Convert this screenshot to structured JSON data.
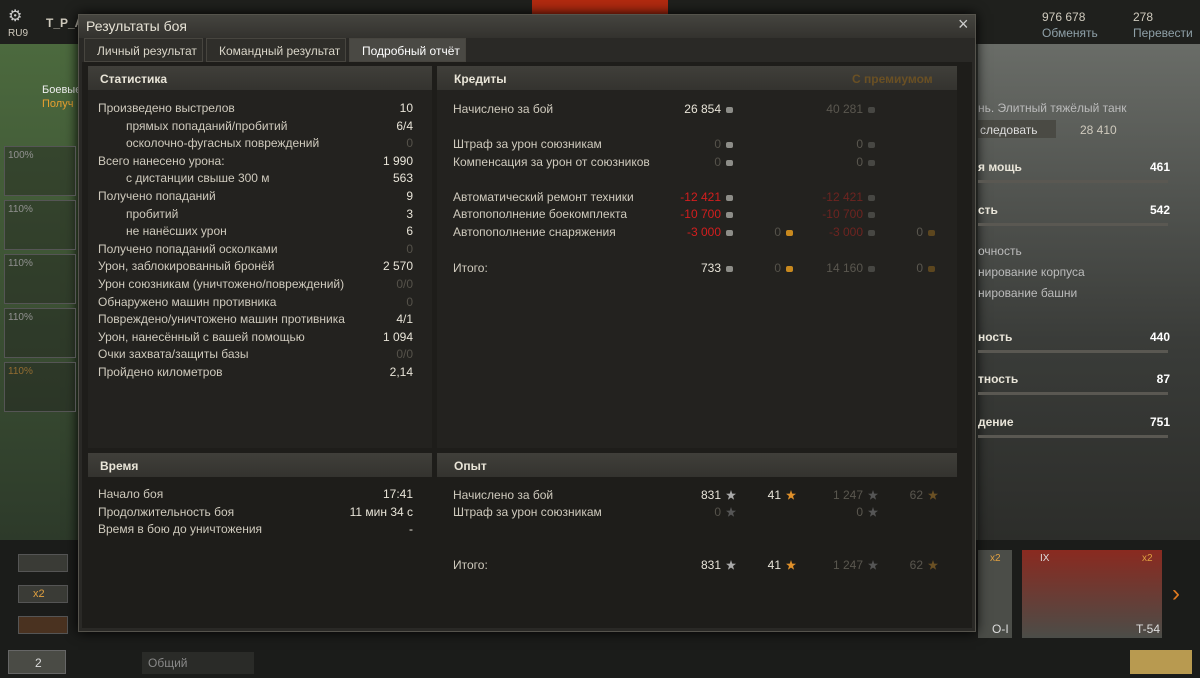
{
  "top_bar": {
    "server": "RU9",
    "player": "T_P_A",
    "credits": "976 678",
    "exchange": "Обменять",
    "gold": "278",
    "transfer": "Перевести"
  },
  "left_panel": {
    "battles": "Боевые",
    "received": "Получ",
    "percents": [
      "100%",
      "110%",
      "110%",
      "110%",
      "110%"
    ]
  },
  "right_panel": {
    "tank_desc": "нь. Элитный тяжёлый танк",
    "research": "следовать",
    "xp": "28 410",
    "params": [
      {
        "label": "я мощь",
        "value": "461"
      },
      {
        "label": "сть",
        "value": "542"
      },
      {
        "label": "ность",
        "value": "440"
      },
      {
        "label": "тность",
        "value": "87"
      },
      {
        "label": "дение",
        "value": "751"
      }
    ],
    "modules": [
      "очность",
      "нирование корпуса",
      "нирование башни"
    ]
  },
  "carousel": {
    "bonus": "x2",
    "tanks": [
      {
        "name": "O-I",
        "bonus": "x2"
      },
      {
        "name": "T-54",
        "tier": "IX",
        "bonus": "x2"
      }
    ]
  },
  "bottom_bar": {
    "platoon": "2",
    "chat": "Общий"
  },
  "dialog": {
    "title": "Результаты боя",
    "tabs": [
      "Личный результат",
      "Командный результат",
      "Подробный отчёт"
    ],
    "statistics": {
      "title": "Статистика",
      "rows": [
        {
          "label": "Произведено выстрелов",
          "value": "10"
        },
        {
          "label": "прямых попаданий/пробитий",
          "value": "6/4"
        },
        {
          "label": "осколочно-фугасных повреждений",
          "value": "0"
        },
        {
          "label": "Всего нанесено урона:",
          "value": "1 990"
        },
        {
          "label": "с дистанции свыше 300 м",
          "value": "563"
        },
        {
          "label": "Получено попаданий",
          "value": "9"
        },
        {
          "label": "пробитий",
          "value": "3"
        },
        {
          "label": "не нанёсших урон",
          "value": "6"
        },
        {
          "label": "Получено попаданий осколками",
          "value": "0"
        },
        {
          "label": "Урон, заблокированный бронёй",
          "value": "2 570"
        },
        {
          "label": "Урон союзникам (уничтожено/повреждений)",
          "value": "0/0"
        },
        {
          "label": "Обнаружено машин противника",
          "value": "0"
        },
        {
          "label": "Повреждено/уничтожено машин противника",
          "value": "4/1"
        },
        {
          "label": "Урон, нанесённый с вашей помощью",
          "value": "1 094"
        },
        {
          "label": "Очки захвата/защиты базы",
          "value": "0/0"
        },
        {
          "label": "Пройдено километров",
          "value": "2,14"
        }
      ]
    },
    "credits": {
      "title": "Кредиты",
      "premium_title": "С премиумом",
      "rows": [
        {
          "label": "Начислено за бой",
          "base": "26 854",
          "premium": "40 281"
        },
        {
          "label": "Штраф за урон союзникам",
          "base": "0",
          "premium": "0"
        },
        {
          "label": "Компенсация за урон от союзников",
          "base": "0",
          "premium": "0"
        },
        {
          "label": "Автоматический ремонт техники",
          "base": "-12 421",
          "premium": "-12 421"
        },
        {
          "label": "Автопополнение боекомплекта",
          "base": "-10 700",
          "premium": "-10 700"
        },
        {
          "label": "Автопополнение снаряжения",
          "base": "-3 000",
          "base_gold": "0",
          "premium": "-3 000",
          "premium_gold": "0"
        },
        {
          "label": "Итого:",
          "base": "733",
          "base_gold": "0",
          "premium": "14 160",
          "premium_gold": "0"
        }
      ]
    },
    "time": {
      "title": "Время",
      "rows": [
        {
          "label": "Начало боя",
          "value": "17:41"
        },
        {
          "label": "Продолжительность боя",
          "value": "11 мин 34 с"
        },
        {
          "label": "Время в бою до уничтожения",
          "value": "-"
        }
      ]
    },
    "experience": {
      "title": "Опыт",
      "rows": [
        {
          "label": "Начислено за бой",
          "base": "831",
          "base_gold": "41",
          "premium": "1 247",
          "premium_gold": "62"
        },
        {
          "label": "Штраф за урон союзникам",
          "base": "0",
          "premium": "0"
        },
        {
          "label": "Итого:",
          "base": "831",
          "base_gold": "41",
          "premium": "1 247",
          "premium_gold": "62"
        }
      ]
    }
  }
}
